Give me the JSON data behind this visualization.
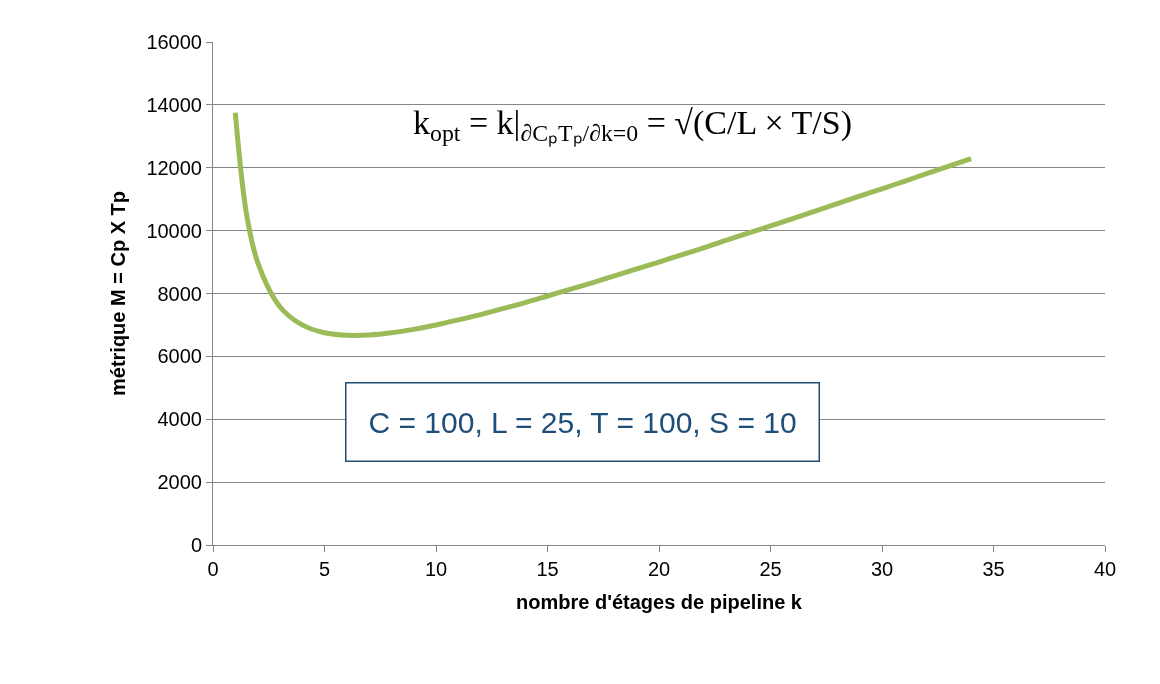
{
  "chart_data": {
    "type": "line",
    "xlabel": "nombre d'étages de pipeline k",
    "ylabel": "métrique M = Cp X Tp",
    "x": [
      1,
      1.5,
      2,
      3,
      4,
      5,
      6,
      7,
      8,
      9,
      10,
      11,
      12,
      13,
      14,
      15,
      16,
      17,
      18,
      19,
      20,
      21,
      22,
      23,
      24,
      25,
      26,
      27,
      28,
      29,
      30,
      31,
      32,
      33,
      34
    ],
    "series": [
      {
        "color": "#9bbb59",
        "values": [
          13750,
          10540,
          9000,
          7580,
          7000,
          6750,
          6670,
          6680,
          6750,
          6860,
          7000,
          7160,
          7330,
          7520,
          7710,
          7920,
          8130,
          8340,
          8560,
          8780,
          9000,
          9230,
          9450,
          9690,
          9920,
          10150,
          10380,
          10620,
          10860,
          11100,
          11330,
          11570,
          11810,
          12050,
          12290
        ]
      }
    ],
    "xlim": [
      0,
      40
    ],
    "xticks": [
      0,
      5,
      10,
      15,
      20,
      25,
      30,
      35,
      40
    ],
    "ylim": [
      0,
      16000
    ],
    "yticks": [
      0,
      2000,
      4000,
      6000,
      8000,
      10000,
      12000,
      14000,
      16000
    ],
    "grid": "y",
    "marker": "none",
    "line_style": "solid",
    "annotations": [
      "k$_{opt}$ = k|$_{∂CₚTₚ/∂k=0}$ = √(C/L × T/S)",
      "C = 100, L = 25, T = 100, S = 10"
    ]
  }
}
